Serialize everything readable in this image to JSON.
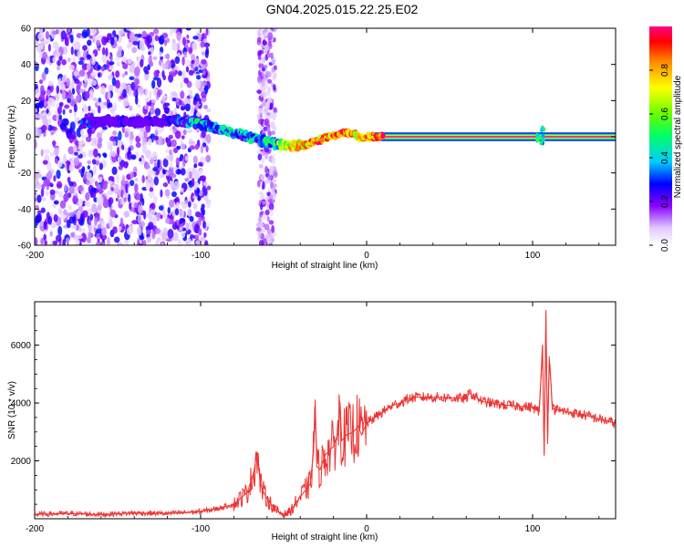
{
  "title": "GN04.2025.015.22.25.E02",
  "chart_data": [
    {
      "type": "heatmap",
      "xlabel": "Height of straight line (km)",
      "ylabel": "Frequency (Hz)",
      "xlim": [
        -200,
        150
      ],
      "ylim": [
        -60,
        60
      ],
      "x_ticks": [
        "-200",
        "-100",
        "0",
        "100"
      ],
      "y_ticks": [
        "-60",
        "-40",
        "-20",
        "0",
        "20",
        "40",
        "60"
      ],
      "colorbar": {
        "label": "Normalized spectral amplitude",
        "ticks": [
          "0.0",
          "0.2",
          "0.4",
          "0.6",
          "0.8"
        ],
        "range": [
          0,
          1
        ]
      },
      "ridge_x": [
        -172,
        -160,
        -140,
        -120,
        -105,
        -95,
        -85,
        -75,
        -65,
        -55,
        -45,
        -38,
        -30,
        -22,
        -15,
        -8,
        -4,
        0,
        4,
        10,
        60,
        100,
        104,
        108,
        150
      ],
      "ridge_y": [
        7,
        9,
        8,
        9,
        8,
        6,
        3,
        1,
        -2,
        -4,
        -5,
        -5,
        -2,
        0,
        2,
        2,
        -1,
        0,
        0,
        0,
        0,
        0,
        0,
        0,
        0
      ],
      "ridge_amp": [
        0.45,
        0.3,
        0.25,
        0.3,
        0.5,
        0.55,
        0.5,
        0.5,
        0.55,
        0.6,
        0.9,
        0.95,
        1.0,
        1.0,
        1.0,
        0.9,
        0.9,
        1.0,
        1.0,
        1.0,
        1.0,
        1.0,
        0.6,
        1.0,
        1.0
      ],
      "noise_region_x": [
        -200,
        -95
      ],
      "noise_band_x": [
        -65,
        -55
      ]
    },
    {
      "type": "line",
      "xlabel": "Height of straight line (km)",
      "ylabel": "SNR (10 * v/v)",
      "xlim": [
        -200,
        150
      ],
      "ylim": [
        0,
        7500
      ],
      "x_ticks": [
        "-200",
        "-100",
        "0",
        "100"
      ],
      "y_ticks": [
        "2000",
        "4000",
        "6000"
      ],
      "series": [
        {
          "color": "#ee3333",
          "x": [
            -200,
            -180,
            -160,
            -140,
            -120,
            -100,
            -90,
            -80,
            -72,
            -68,
            -66,
            -64,
            -62,
            -60,
            -55,
            -50,
            -46,
            -42,
            -38,
            -34,
            -32,
            -31,
            -30,
            -28,
            -25,
            -20,
            -17,
            -16,
            -15,
            -12,
            -8,
            -5,
            -3,
            0,
            5,
            10,
            15,
            20,
            25,
            30,
            40,
            50,
            60,
            62,
            70,
            80,
            90,
            100,
            104,
            106,
            107,
            108,
            109,
            110,
            112,
            116,
            120,
            130,
            140,
            150
          ],
          "y": [
            150,
            180,
            150,
            200,
            180,
            250,
            350,
            500,
            900,
            1600,
            2300,
            1200,
            900,
            700,
            300,
            150,
            250,
            600,
            900,
            1200,
            2300,
            4100,
            1800,
            1700,
            2200,
            2500,
            3000,
            4000,
            2700,
            2900,
            3000,
            3200,
            2900,
            3300,
            3500,
            3700,
            3900,
            4000,
            4150,
            4200,
            4200,
            4180,
            4150,
            4350,
            4050,
            3950,
            3900,
            3850,
            3700,
            6000,
            2200,
            7100,
            2600,
            5600,
            3800,
            3750,
            3700,
            3600,
            3450,
            3300
          ]
        }
      ]
    }
  ]
}
